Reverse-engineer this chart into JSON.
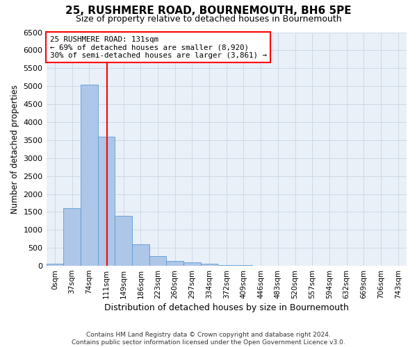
{
  "title": "25, RUSHMERE ROAD, BOURNEMOUTH, BH6 5PE",
  "subtitle": "Size of property relative to detached houses in Bournemouth",
  "xlabel": "Distribution of detached houses by size in Bournemouth",
  "ylabel": "Number of detached properties",
  "footer_line1": "Contains HM Land Registry data © Crown copyright and database right 2024.",
  "footer_line2": "Contains public sector information licensed under the Open Government Licence v3.0.",
  "categories": [
    "0sqm",
    "37sqm",
    "74sqm",
    "111sqm",
    "149sqm",
    "186sqm",
    "223sqm",
    "260sqm",
    "297sqm",
    "334sqm",
    "372sqm",
    "409sqm",
    "446sqm",
    "483sqm",
    "520sqm",
    "557sqm",
    "594sqm",
    "632sqm",
    "669sqm",
    "706sqm",
    "743sqm"
  ],
  "values": [
    50,
    1600,
    5050,
    3600,
    1400,
    600,
    275,
    130,
    100,
    60,
    30,
    15,
    5,
    2,
    1,
    0,
    0,
    0,
    0,
    0,
    0
  ],
  "bar_color": "#aec6e8",
  "bar_edge_color": "#5b9bd5",
  "red_line_label": "25 RUSHMERE ROAD: 131sqm",
  "annotation_line2": "← 69% of detached houses are smaller (8,920)",
  "annotation_line3": "30% of semi-detached houses are larger (3,861) →",
  "ylim_max": 6500,
  "yticks": [
    0,
    500,
    1000,
    1500,
    2000,
    2500,
    3000,
    3500,
    4000,
    4500,
    5000,
    5500,
    6000,
    6500
  ],
  "bin_width": 37,
  "property_size": 131,
  "grid_color": "#ccd9e8",
  "background_color": "#eaf0f8",
  "title_fontsize": 11,
  "subtitle_fontsize": 9
}
